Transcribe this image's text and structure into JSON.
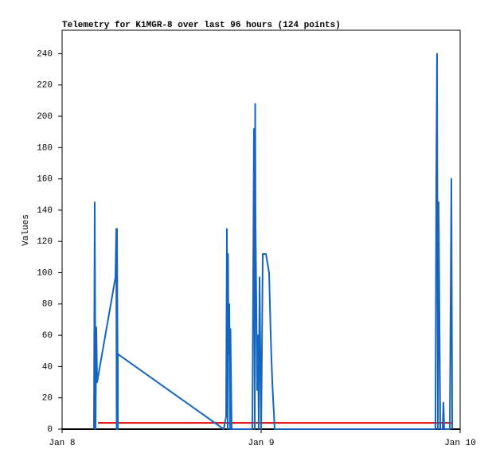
{
  "chart_data": {
    "type": "line",
    "title": "Telemetry for K1MGR-8 over last 96 hours (124 points)",
    "y_label": "Values",
    "xlim": [
      0,
      2
    ],
    "xticks": [
      {
        "value": 0,
        "label": "Jan 8"
      },
      {
        "value": 1,
        "label": "Jan 9"
      },
      {
        "value": 2,
        "label": "Jan 10"
      }
    ],
    "ylim": [
      0,
      255
    ],
    "yticks": [
      0,
      20,
      40,
      60,
      80,
      100,
      120,
      140,
      160,
      180,
      200,
      220,
      240
    ],
    "series": [
      {
        "color": "#000000",
        "x": [
          0,
          2
        ],
        "values": [
          0,
          0
        ]
      },
      {
        "color": "#e00000",
        "x": [
          0.18,
          1.96
        ],
        "values": [
          4,
          4
        ]
      },
      {
        "color": "#1565c0",
        "x": [
          0.16,
          0.164,
          0.168,
          0.172,
          0.176,
          0.268,
          0.272,
          0.274,
          0.276,
          0.28,
          0.28,
          0.812,
          0.824,
          0.828,
          0.832,
          0.834,
          0.836,
          0.84,
          0.844,
          0.846,
          0.848,
          0.852,
          0.956,
          0.96,
          0.964,
          0.968,
          0.97,
          0.972,
          0.976,
          0.98,
          0.984,
          0.988,
          0.992,
          0.996,
          1.0,
          1.004,
          1.008,
          1.024,
          1.04,
          1.048,
          1.056,
          1.064,
          1.068,
          1.876,
          1.88,
          1.884,
          1.888,
          1.892,
          1.896,
          1.9,
          1.912,
          1.916,
          1.92,
          1.948,
          1.952,
          1.956,
          1.96
        ],
        "values": [
          0,
          145,
          0,
          65,
          30,
          97,
          128,
          0,
          128,
          0,
          48,
          0,
          8,
          128,
          0,
          112,
          48,
          80,
          0,
          64,
          40,
          0,
          0,
          97,
          192,
          0,
          208,
          130,
          80,
          25,
          60,
          0,
          97,
          50,
          0,
          48,
          112,
          112,
          100,
          60,
          30,
          10,
          0,
          0,
          160,
          240,
          0,
          145,
          70,
          0,
          0,
          17,
          0,
          0,
          80,
          160,
          0
        ]
      }
    ]
  }
}
